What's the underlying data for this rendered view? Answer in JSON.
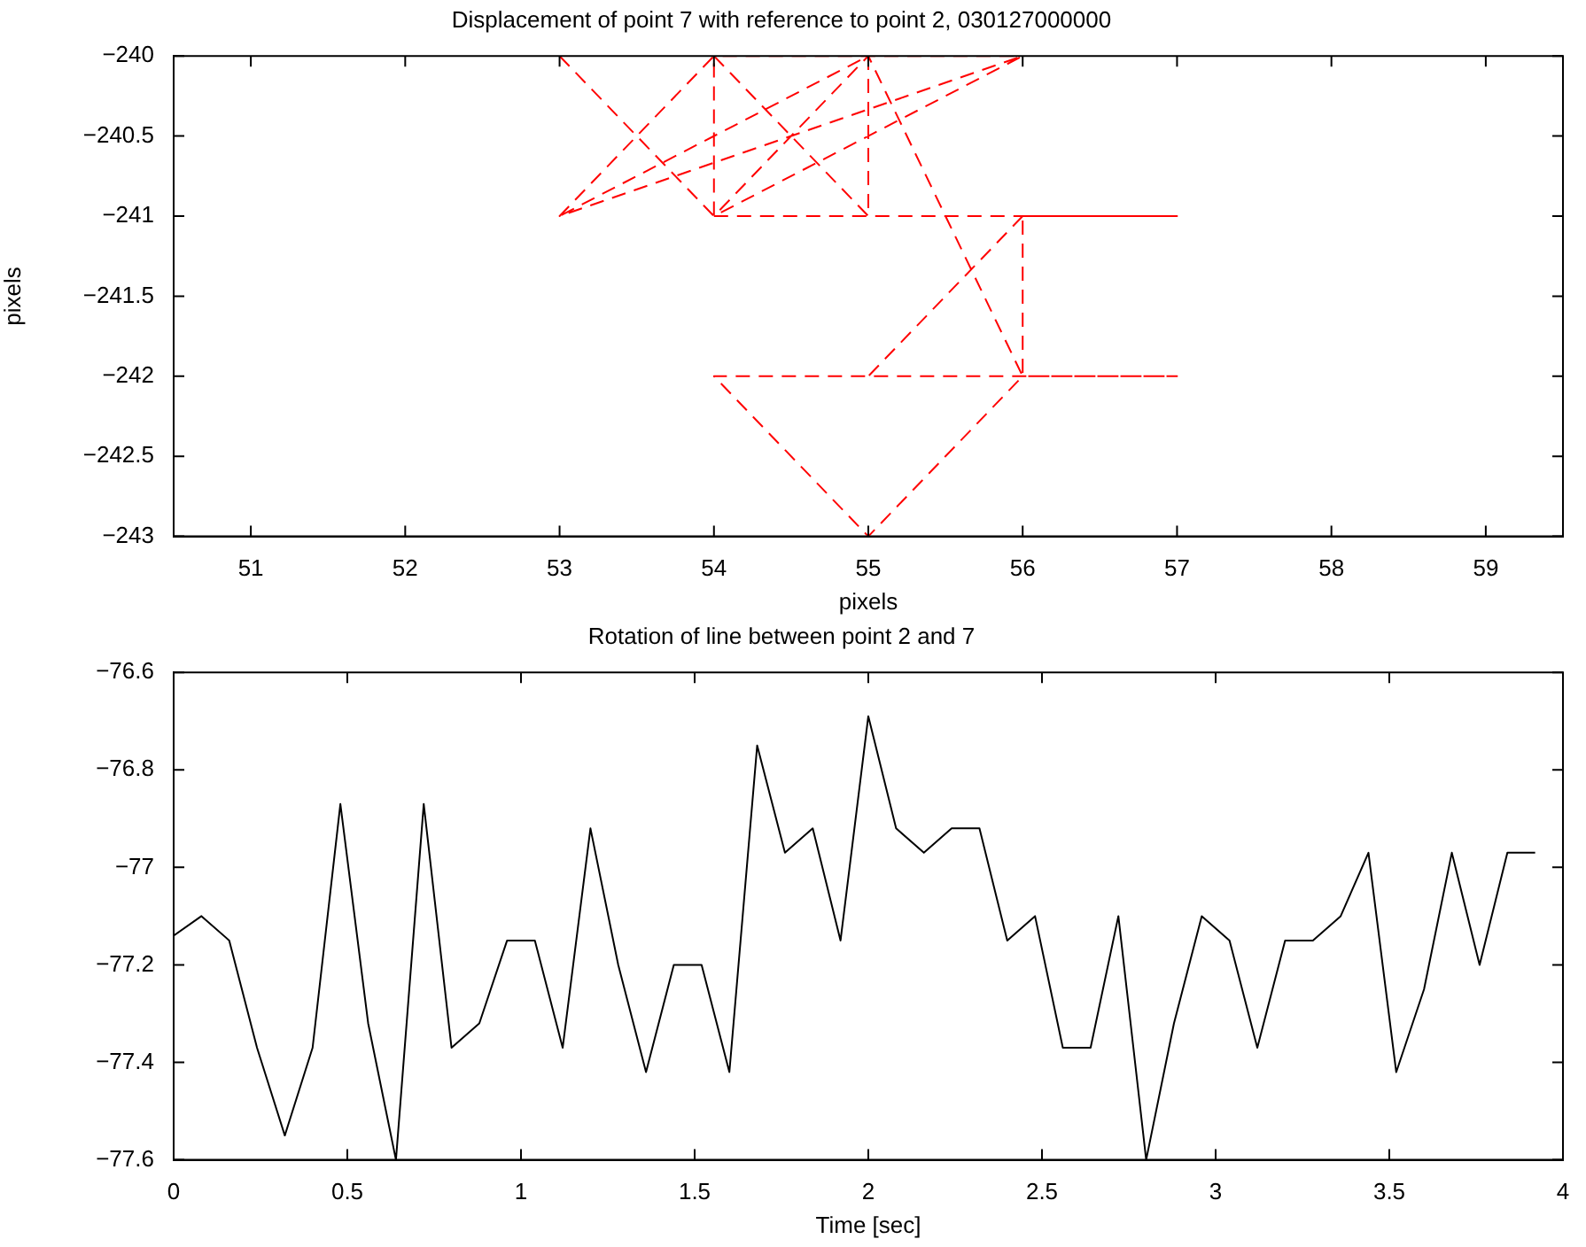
{
  "chart_data": [
    {
      "type": "line",
      "title": "Displacement of point 7 with reference to point 2, 030127000000",
      "xlabel": "pixels",
      "ylabel": "pixels",
      "x": [
        53,
        54,
        56,
        53,
        54,
        54,
        55,
        54,
        55,
        55,
        53,
        null,
        54,
        57,
        56,
        56,
        57,
        54,
        55,
        56,
        55,
        56,
        null,
        56,
        55
      ],
      "series": [
        {
          "color": "#ff0000",
          "line_style": "dashed",
          "marker": "none",
          "values": [
            -240,
            -241,
            -240,
            -241,
            -240,
            -241,
            -240,
            -240,
            -241,
            -240,
            -241,
            null,
            -241,
            -241,
            -241,
            -242,
            -242,
            -242,
            -243,
            -242,
            -240,
            -240,
            null,
            -241,
            -242
          ]
        }
      ],
      "xlim": [
        50.5,
        59.5
      ],
      "xticks": [
        51,
        52,
        53,
        54,
        55,
        56,
        57,
        58,
        59
      ],
      "ylim": [
        -243,
        -240
      ],
      "yticks": [
        {
          "value": -243,
          "label": "−243"
        },
        {
          "value": -242.5,
          "label": "−242.5"
        },
        {
          "value": -242,
          "label": "−242"
        },
        {
          "value": -241.5,
          "label": "−241.5"
        },
        {
          "value": -241,
          "label": "−241"
        },
        {
          "value": -240.5,
          "label": "−240.5"
        },
        {
          "value": -240,
          "label": "−240"
        }
      ]
    },
    {
      "type": "line",
      "title": "Rotation of line between point 2 and 7",
      "xlabel": "Time [sec]",
      "x": [
        0,
        0.08,
        0.16,
        0.24,
        0.32,
        0.4,
        0.48,
        0.56,
        0.64,
        0.72,
        0.8,
        0.88,
        0.96,
        1.04,
        1.12,
        1.2,
        1.28,
        1.36,
        1.44,
        1.52,
        1.6,
        1.68,
        1.76,
        1.84,
        1.92,
        2,
        2.08,
        2.16,
        2.24,
        2.32,
        2.4,
        2.48,
        2.56,
        2.64,
        2.72,
        2.8,
        2.88,
        2.96,
        3.04,
        3.12,
        3.2,
        3.28,
        3.36,
        3.44,
        3.52,
        3.6,
        3.68,
        3.76,
        3.84,
        3.92
      ],
      "series": [
        {
          "color": "#000000",
          "line_style": "solid",
          "marker": "none",
          "values": [
            -77.14,
            -77.1,
            -77.15,
            -77.37,
            -77.55,
            -77.37,
            -76.87,
            -77.32,
            -77.6,
            -76.87,
            -77.37,
            -77.32,
            -77.15,
            -77.15,
            -77.37,
            -76.92,
            -77.2,
            -77.42,
            -77.2,
            -77.2,
            -77.42,
            -76.75,
            -76.97,
            -76.92,
            -77.15,
            -76.69,
            -76.92,
            -76.97,
            -76.92,
            -76.92,
            -77.15,
            -77.1,
            -77.37,
            -77.37,
            -77.1,
            -77.6,
            -77.32,
            -77.1,
            -77.15,
            -77.37,
            -77.15,
            -77.15,
            -77.1,
            -76.97,
            -77.42,
            -77.25,
            -76.97,
            -77.2,
            -76.97,
            -76.97
          ]
        }
      ],
      "xlim": [
        0,
        4
      ],
      "xticks": [
        0,
        0.5,
        1,
        1.5,
        2,
        2.5,
        3,
        3.5,
        4
      ],
      "ylim": [
        -77.6,
        -76.6
      ],
      "yticks": [
        {
          "value": -77.6,
          "label": "−77.6"
        },
        {
          "value": -77.4,
          "label": "−77.4"
        },
        {
          "value": -77.2,
          "label": "−77.2"
        },
        {
          "value": -77,
          "label": "−77"
        },
        {
          "value": -76.8,
          "label": "−76.8"
        },
        {
          "value": -76.6,
          "label": "−76.6"
        }
      ]
    }
  ]
}
